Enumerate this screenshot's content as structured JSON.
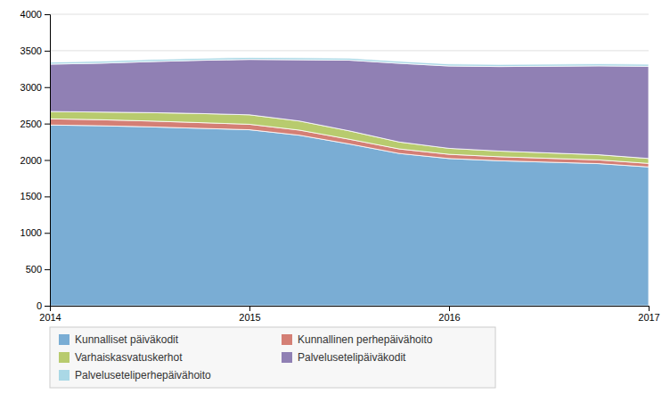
{
  "chart_data": {
    "type": "area",
    "stacked": true,
    "x": [
      2014.0,
      2014.25,
      2014.5,
      2014.75,
      2015.0,
      2015.25,
      2015.5,
      2015.75,
      2016.0,
      2016.25,
      2016.5,
      2016.75,
      2017.0
    ],
    "series": [
      {
        "name": "Kunnalliset päiväkodit",
        "color": "#7aadd4",
        "values": [
          2480,
          2470,
          2455,
          2435,
          2415,
          2340,
          2220,
          2090,
          2020,
          1990,
          1970,
          1950,
          1905
        ]
      },
      {
        "name": "Kunnallinen perhepäivähoito",
        "color": "#d47f75",
        "values": [
          85,
          83,
          80,
          78,
          75,
          70,
          65,
          62,
          58,
          55,
          53,
          51,
          48
        ]
      },
      {
        "name": "Varhaiskasvatuskerhot",
        "color": "#b8cb6e",
        "values": [
          100,
          105,
          115,
          125,
          130,
          125,
          115,
          95,
          82,
          78,
          74,
          71,
          68
        ]
      },
      {
        "name": "Palvelusetelipäiväkodit",
        "color": "#9080b4",
        "values": [
          650,
          670,
          700,
          730,
          760,
          840,
          970,
          1080,
          1130,
          1160,
          1190,
          1220,
          1265
        ]
      },
      {
        "name": "Palveluseteliperhepäivähoito",
        "color": "#aad8e6",
        "values": [
          28,
          28,
          28,
          28,
          28,
          28,
          28,
          28,
          28,
          28,
          28,
          28,
          28
        ]
      }
    ],
    "xlim": [
      2014.0,
      2017.0
    ],
    "ylim": [
      0,
      4000
    ],
    "xticks": [
      2014,
      2015,
      2016,
      2017
    ],
    "yticks": [
      0,
      500,
      1000,
      1500,
      2000,
      2500,
      3000,
      3500,
      4000
    ],
    "grid": "y",
    "legend": "bottom"
  }
}
